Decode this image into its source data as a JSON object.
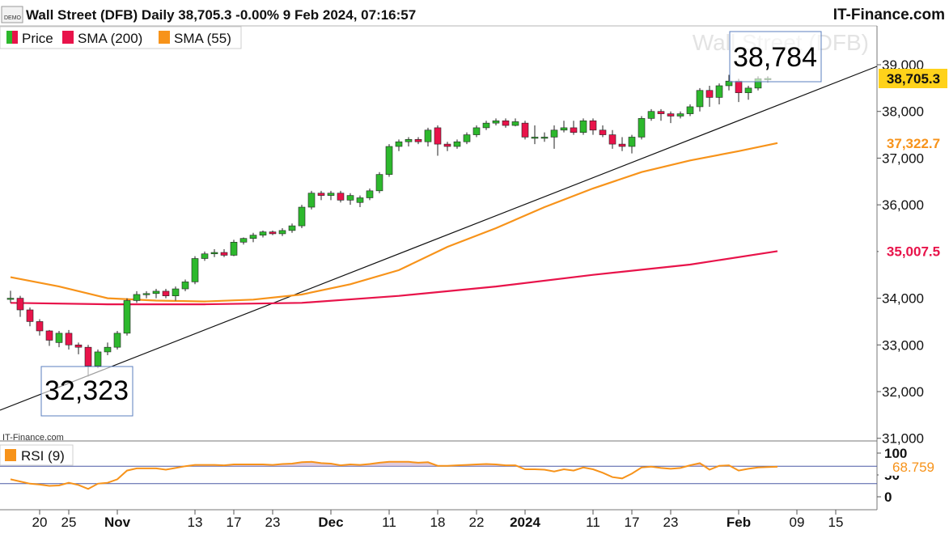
{
  "header": {
    "title": "Wall Street (DFB) Daily 38,705.3 -0.00% 9 Feb 2024, 07:16:57",
    "brand": "IT-Finance.com",
    "demo_badge": "DEMO"
  },
  "watermark": "Wall Street (DFB)",
  "source_label": "IT-Finance.com",
  "legend": [
    {
      "label": "Price",
      "color": "#2db82d"
    },
    {
      "label": "SMA (200)",
      "color": "#e8134a"
    },
    {
      "label": "SMA (55)",
      "color": "#f7931a"
    }
  ],
  "rsi_legend": {
    "label": "RSI (9)",
    "color": "#f7931a"
  },
  "callouts": {
    "high": "38,784",
    "low": "32,323"
  },
  "price_badges": {
    "last": "38,705.3",
    "sma55": "37,322.7",
    "sma200": "35,007.5",
    "rsi": "68.759"
  },
  "colors": {
    "up": "#2db82d",
    "down": "#e8134a",
    "sma55": "#f7931a",
    "sma200": "#e8134a",
    "rsi": "#f7931a",
    "last_badge": "#ffd21a"
  },
  "chart_data": {
    "type": "candlestick",
    "y_axis": {
      "ylim": [
        31000,
        39800
      ],
      "ticks": [
        "31,000",
        "32,000",
        "33,000",
        "34,000",
        "35,000",
        "36,000",
        "37,000",
        "38,000",
        "39,000"
      ],
      "tick_values": [
        31000,
        32000,
        33000,
        34000,
        35000,
        36000,
        37000,
        38000,
        39000
      ]
    },
    "rsi_axis": {
      "ylim": [
        0,
        100
      ],
      "ticks": [
        "0",
        "50",
        "100"
      ],
      "tick_values": [
        0,
        50,
        100
      ],
      "overbought": 70,
      "oversold": 30
    },
    "x_ticks": [
      {
        "label": "20",
        "i": 3,
        "bold": false
      },
      {
        "label": "25",
        "i": 6,
        "bold": false
      },
      {
        "label": "Nov",
        "i": 11,
        "bold": true
      },
      {
        "label": "13",
        "i": 19,
        "bold": false
      },
      {
        "label": "17",
        "i": 23,
        "bold": false
      },
      {
        "label": "23",
        "i": 27,
        "bold": false
      },
      {
        "label": "Dec",
        "i": 33,
        "bold": true
      },
      {
        "label": "11",
        "i": 39,
        "bold": false
      },
      {
        "label": "18",
        "i": 44,
        "bold": false
      },
      {
        "label": "22",
        "i": 48,
        "bold": false
      },
      {
        "label": "2024",
        "i": 53,
        "bold": true
      },
      {
        "label": "11",
        "i": 60,
        "bold": false
      },
      {
        "label": "17",
        "i": 64,
        "bold": false
      },
      {
        "label": "23",
        "i": 68,
        "bold": false
      },
      {
        "label": "Feb",
        "i": 75,
        "bold": true
      },
      {
        "label": "09",
        "i": 81,
        "bold": false
      },
      {
        "label": "15",
        "i": 85,
        "bold": false
      }
    ],
    "candles": [
      [
        33980,
        34160,
        33900,
        34000
      ],
      [
        34000,
        34050,
        33600,
        33750
      ],
      [
        33750,
        33800,
        33400,
        33500
      ],
      [
        33500,
        33550,
        33200,
        33300
      ],
      [
        33300,
        33320,
        32980,
        33100
      ],
      [
        33050,
        33300,
        32950,
        33250
      ],
      [
        33250,
        33320,
        32900,
        33000
      ],
      [
        33000,
        33050,
        32800,
        32950
      ],
      [
        32950,
        33000,
        32323,
        32550
      ],
      [
        32550,
        32900,
        32500,
        32850
      ],
      [
        32850,
        33050,
        32780,
        32950
      ],
      [
        32950,
        33300,
        32900,
        33250
      ],
      [
        33250,
        34000,
        33200,
        33950
      ],
      [
        33950,
        34150,
        33900,
        34080
      ],
      [
        34080,
        34150,
        34000,
        34100
      ],
      [
        34100,
        34200,
        34000,
        34150
      ],
      [
        34150,
        34200,
        34000,
        34050
      ],
      [
        34050,
        34250,
        33950,
        34200
      ],
      [
        34200,
        34400,
        34150,
        34350
      ],
      [
        34350,
        34900,
        34300,
        34850
      ],
      [
        34850,
        35000,
        34800,
        34950
      ],
      [
        34950,
        35050,
        34880,
        34980
      ],
      [
        34980,
        35050,
        34880,
        34920
      ],
      [
        34920,
        35250,
        34900,
        35200
      ],
      [
        35200,
        35300,
        35150,
        35280
      ],
      [
        35280,
        35400,
        35200,
        35350
      ],
      [
        35350,
        35450,
        35300,
        35420
      ],
      [
        35420,
        35450,
        35350,
        35380
      ],
      [
        35380,
        35500,
        35330,
        35450
      ],
      [
        35450,
        35600,
        35400,
        35550
      ],
      [
        35550,
        36000,
        35500,
        35950
      ],
      [
        35950,
        36300,
        35900,
        36250
      ],
      [
        36250,
        36300,
        36100,
        36200
      ],
      [
        36200,
        36300,
        36100,
        36250
      ],
      [
        36250,
        36300,
        36050,
        36100
      ],
      [
        36100,
        36250,
        36000,
        36200
      ],
      [
        36050,
        36200,
        35950,
        36150
      ],
      [
        36150,
        36350,
        36100,
        36300
      ],
      [
        36300,
        36700,
        36250,
        36650
      ],
      [
        36650,
        37300,
        36600,
        37250
      ],
      [
        37250,
        37400,
        37150,
        37350
      ],
      [
        37350,
        37450,
        37250,
        37400
      ],
      [
        37400,
        37450,
        37300,
        37350
      ],
      [
        37350,
        37650,
        37250,
        37600
      ],
      [
        37650,
        37700,
        37050,
        37300
      ],
      [
        37300,
        37350,
        37150,
        37250
      ],
      [
        37250,
        37400,
        37200,
        37350
      ],
      [
        37350,
        37550,
        37300,
        37500
      ],
      [
        37500,
        37700,
        37450,
        37650
      ],
      [
        37650,
        37800,
        37600,
        37750
      ],
      [
        37750,
        37850,
        37700,
        37800
      ],
      [
        37800,
        37850,
        37650,
        37700
      ],
      [
        37700,
        37850,
        37680,
        37780
      ],
      [
        37750,
        37800,
        37400,
        37450
      ],
      [
        37450,
        37700,
        37300,
        37450
      ],
      [
        37450,
        37550,
        37350,
        37450
      ],
      [
        37450,
        37700,
        37200,
        37600
      ],
      [
        37600,
        37800,
        37550,
        37650
      ],
      [
        37650,
        37800,
        37500,
        37550
      ],
      [
        37550,
        37850,
        37500,
        37800
      ],
      [
        37800,
        37850,
        37500,
        37600
      ],
      [
        37600,
        37700,
        37450,
        37500
      ],
      [
        37500,
        37600,
        37200,
        37300
      ],
      [
        37300,
        37450,
        37150,
        37250
      ],
      [
        37250,
        37500,
        37100,
        37450
      ],
      [
        37450,
        37900,
        37400,
        37850
      ],
      [
        37850,
        38050,
        37800,
        38000
      ],
      [
        38000,
        38050,
        37800,
        37950
      ],
      [
        37950,
        38000,
        37750,
        37900
      ],
      [
        37900,
        38000,
        37850,
        37950
      ],
      [
        37950,
        38150,
        37900,
        38100
      ],
      [
        38100,
        38500,
        38000,
        38450
      ],
      [
        38450,
        38550,
        38100,
        38300
      ],
      [
        38300,
        38600,
        38150,
        38550
      ],
      [
        38550,
        38784,
        38450,
        38650
      ],
      [
        38650,
        38700,
        38200,
        38400
      ],
      [
        38400,
        38550,
        38250,
        38500
      ],
      [
        38500,
        38750,
        38450,
        38700
      ],
      [
        38700,
        38750,
        38620,
        38705.3
      ]
    ],
    "candle_start_index": 0,
    "sma200": [
      [
        0,
        33900
      ],
      [
        10,
        33870
      ],
      [
        20,
        33870
      ],
      [
        30,
        33900
      ],
      [
        40,
        34050
      ],
      [
        50,
        34250
      ],
      [
        60,
        34500
      ],
      [
        70,
        34720
      ],
      [
        79,
        35007.5
      ]
    ],
    "sma55": [
      [
        0,
        34450
      ],
      [
        5,
        34250
      ],
      [
        10,
        34000
      ],
      [
        15,
        33950
      ],
      [
        20,
        33930
      ],
      [
        25,
        33970
      ],
      [
        30,
        34080
      ],
      [
        35,
        34300
      ],
      [
        40,
        34600
      ],
      [
        45,
        35100
      ],
      [
        50,
        35500
      ],
      [
        55,
        35950
      ],
      [
        60,
        36350
      ],
      [
        65,
        36700
      ],
      [
        70,
        36950
      ],
      [
        75,
        37150
      ],
      [
        79,
        37322.7
      ]
    ],
    "rsi": [
      [
        0,
        40
      ],
      [
        1,
        35
      ],
      [
        2,
        30
      ],
      [
        3,
        28
      ],
      [
        4,
        25
      ],
      [
        5,
        26
      ],
      [
        6,
        32
      ],
      [
        7,
        27
      ],
      [
        8,
        18
      ],
      [
        9,
        30
      ],
      [
        10,
        32
      ],
      [
        11,
        40
      ],
      [
        12,
        60
      ],
      [
        13,
        65
      ],
      [
        14,
        65
      ],
      [
        15,
        65
      ],
      [
        16,
        62
      ],
      [
        17,
        66
      ],
      [
        18,
        70
      ],
      [
        19,
        73
      ],
      [
        20,
        73
      ],
      [
        21,
        73
      ],
      [
        22,
        72
      ],
      [
        23,
        74
      ],
      [
        24,
        74
      ],
      [
        25,
        74
      ],
      [
        26,
        74
      ],
      [
        27,
        73
      ],
      [
        28,
        75
      ],
      [
        29,
        76
      ],
      [
        30,
        79
      ],
      [
        31,
        80
      ],
      [
        32,
        77
      ],
      [
        33,
        76
      ],
      [
        34,
        72
      ],
      [
        35,
        74
      ],
      [
        36,
        73
      ],
      [
        37,
        75
      ],
      [
        38,
        78
      ],
      [
        39,
        80
      ],
      [
        40,
        80
      ],
      [
        41,
        80
      ],
      [
        42,
        78
      ],
      [
        43,
        79
      ],
      [
        44,
        71
      ],
      [
        45,
        71
      ],
      [
        46,
        72
      ],
      [
        47,
        73
      ],
      [
        48,
        74
      ],
      [
        49,
        75
      ],
      [
        50,
        74
      ],
      [
        51,
        72
      ],
      [
        52,
        72
      ],
      [
        53,
        63
      ],
      [
        54,
        63
      ],
      [
        55,
        62
      ],
      [
        56,
        58
      ],
      [
        57,
        63
      ],
      [
        58,
        60
      ],
      [
        59,
        67
      ],
      [
        60,
        63
      ],
      [
        61,
        55
      ],
      [
        62,
        45
      ],
      [
        63,
        42
      ],
      [
        64,
        53
      ],
      [
        65,
        67
      ],
      [
        66,
        69
      ],
      [
        67,
        66
      ],
      [
        68,
        64
      ],
      [
        69,
        66
      ],
      [
        70,
        72
      ],
      [
        71,
        77
      ],
      [
        72,
        62
      ],
      [
        73,
        71
      ],
      [
        74,
        72
      ],
      [
        75,
        60
      ],
      [
        76,
        64
      ],
      [
        77,
        67
      ],
      [
        78,
        68
      ],
      [
        79,
        68.759
      ]
    ],
    "trendline": [
      [
        32000,
        31585
      ],
      [
        -1,
        0
      ]
    ]
  }
}
